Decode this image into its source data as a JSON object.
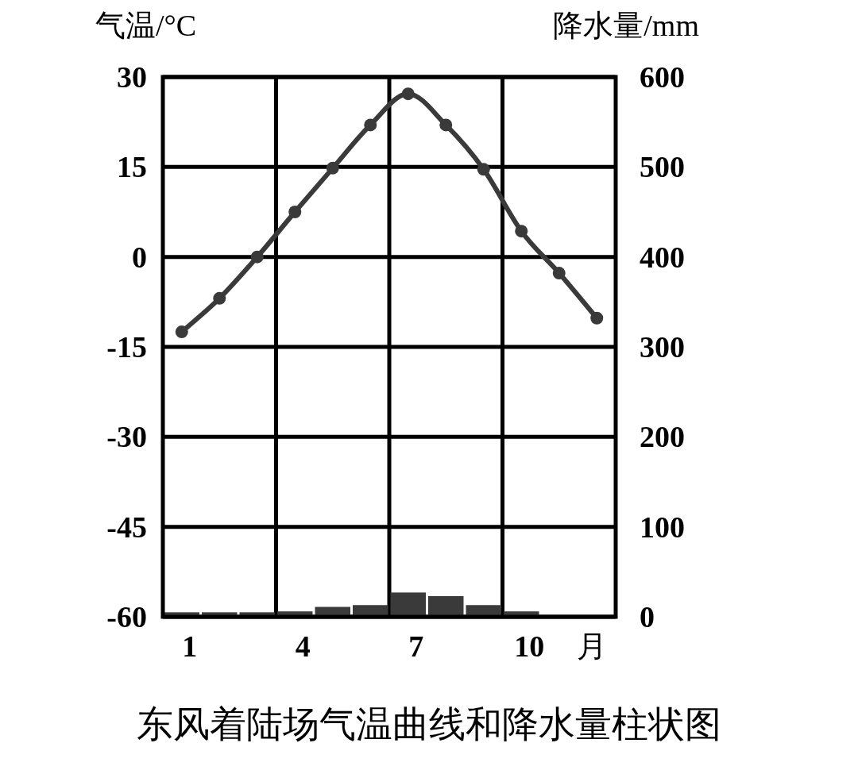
{
  "chart_data": {
    "type": "bar",
    "title": "东风着陆场气温曲线和降水量柱状图",
    "xlabel": "月",
    "ylabel": "气温/°C",
    "y2label": "降水量/mm",
    "categories": [
      "1",
      null,
      null,
      "4",
      null,
      null,
      "7",
      null,
      null,
      "10",
      null,
      null
    ],
    "series": [
      {
        "type": "line",
        "axis": "y",
        "color": "#3a3a3a",
        "marker": "circle",
        "line_style": "solid",
        "values": [
          -12.5,
          -6.9,
          0,
          7.5,
          14.8,
          22,
          27.2,
          22,
          14.6,
          4.3,
          -2.7,
          -10.2
        ]
      },
      {
        "axis": "y2",
        "color": "#3a3a3a",
        "values": [
          5,
          5,
          5,
          6,
          11,
          13,
          27,
          23,
          13,
          6,
          0,
          0
        ]
      }
    ],
    "ylim": [
      -60,
      30
    ],
    "yticks": [
      -60,
      -45,
      -30,
      -15,
      0,
      15,
      30
    ],
    "y2lim": [
      0,
      600
    ],
    "y2ticks": [
      0,
      100,
      200,
      300,
      400,
      500,
      600
    ],
    "grid": true
  }
}
